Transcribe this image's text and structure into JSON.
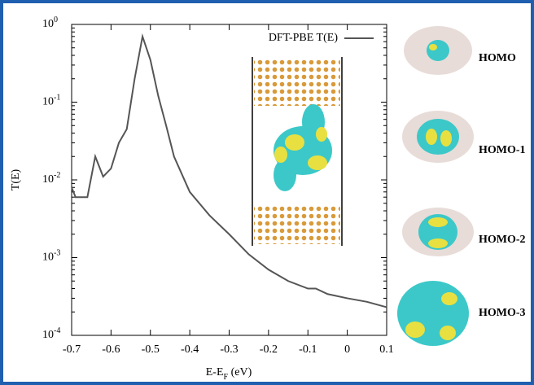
{
  "chart_data": {
    "type": "line",
    "y_label": "T(E)",
    "x_label_parts": [
      "E-E",
      "F",
      " (eV)"
    ],
    "log_y": true,
    "legend_position": "upper right",
    "x": [
      -0.7,
      -0.69,
      -0.66,
      -0.64,
      -0.62,
      -0.6,
      -0.58,
      -0.56,
      -0.54,
      -0.52,
      -0.5,
      -0.48,
      -0.46,
      -0.44,
      -0.4,
      -0.35,
      -0.3,
      -0.25,
      -0.2,
      -0.15,
      -0.1,
      -0.08,
      -0.05,
      0,
      0.05,
      0.1
    ],
    "series": [
      {
        "name": "DFT-PBE T(E)",
        "color": "#555555",
        "values": [
          0.008,
          0.006,
          0.006,
          0.02,
          0.011,
          0.014,
          0.03,
          0.045,
          0.2,
          0.7,
          0.35,
          0.12,
          0.05,
          0.02,
          0.007,
          0.0035,
          0.002,
          0.0011,
          0.0007,
          0.0005,
          0.0004,
          0.0004,
          0.00034,
          0.0003,
          0.00027,
          0.00023
        ]
      }
    ],
    "xlim": [
      -0.7,
      0.1
    ],
    "xticks": [
      -0.7,
      -0.6,
      -0.5,
      -0.4,
      -0.3,
      -0.2,
      -0.1,
      0,
      0.1
    ],
    "ylim": [
      0.0001,
      1
    ],
    "yticks": [
      {
        "value": 1,
        "label": "10",
        "exponent": "0"
      },
      {
        "value": 0.1,
        "label": "10",
        "exponent": "-1"
      },
      {
        "value": 0.01,
        "label": "10",
        "exponent": "-2"
      },
      {
        "value": 0.001,
        "label": "10",
        "exponent": "-3"
      },
      {
        "value": 0.0001,
        "label": "10",
        "exponent": "-4"
      }
    ],
    "orbital_labels": [
      "HOMO",
      "HOMO-1",
      "HOMO-2",
      "HOMO-3"
    ]
  }
}
